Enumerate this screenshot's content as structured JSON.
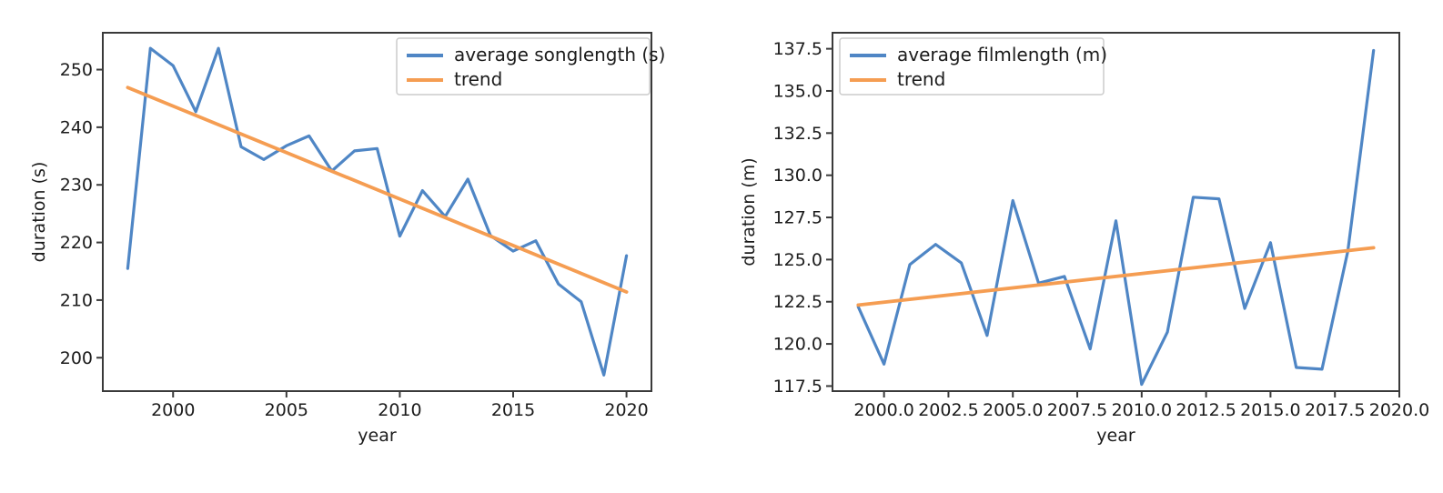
{
  "figure": {
    "background": "#ffffff"
  },
  "chart_data": [
    {
      "name": "average-songlength-chart",
      "type": "line",
      "title": "",
      "xlabel": "year",
      "ylabel": "duration (s)",
      "x": [
        1998,
        1999,
        2000,
        2001,
        2002,
        2003,
        2004,
        2005,
        2006,
        2007,
        2008,
        2009,
        2010,
        2011,
        2012,
        2013,
        2014,
        2015,
        2016,
        2017,
        2018,
        2019,
        2020
      ],
      "series": [
        {
          "name": "average songlength (s)",
          "color": "#4f86c5",
          "values": [
            215.5,
            253.7,
            250.7,
            242.7,
            253.7,
            236.6,
            234.4,
            236.8,
            238.5,
            232.4,
            235.9,
            236.3,
            221.1,
            229.0,
            224.5,
            231.0,
            221.2,
            218.5,
            220.3,
            212.8,
            209.7,
            197.0,
            217.7
          ]
        },
        {
          "name": "trend",
          "color": "#f59d52",
          "x": [
            1998,
            2020
          ],
          "values": [
            246.9,
            211.4
          ]
        }
      ],
      "legend": {
        "position": "top-right",
        "entries": [
          "average songlength (s)",
          "trend"
        ]
      },
      "xlim": [
        1996.9,
        2021.1
      ],
      "ylim": [
        194.2,
        256.4
      ],
      "xticks": [
        2000,
        2005,
        2010,
        2015,
        2020
      ],
      "xtick_labels": [
        "2000",
        "2005",
        "2010",
        "2015",
        "2020"
      ],
      "yticks": [
        200,
        210,
        220,
        230,
        240,
        250
      ],
      "ytick_labels": [
        "200",
        "210",
        "220",
        "230",
        "240",
        "250"
      ],
      "grid": false
    },
    {
      "name": "average-filmlength-chart",
      "type": "line",
      "title": "",
      "xlabel": "year",
      "ylabel": "duration (m)",
      "x": [
        1999,
        2000,
        2001,
        2002,
        2003,
        2004,
        2005,
        2006,
        2007,
        2008,
        2009,
        2010,
        2011,
        2012,
        2013,
        2014,
        2015,
        2016,
        2017,
        2018,
        2019
      ],
      "series": [
        {
          "name": "average filmlength (m)",
          "color": "#4f86c5",
          "values": [
            122.2,
            118.8,
            124.7,
            125.9,
            124.8,
            120.5,
            128.5,
            123.6,
            124.0,
            119.7,
            127.3,
            117.6,
            120.7,
            128.7,
            128.6,
            122.1,
            126.0,
            118.6,
            118.5,
            125.5,
            137.4
          ]
        },
        {
          "name": "trend",
          "color": "#f59d52",
          "x": [
            1999,
            2019
          ],
          "values": [
            122.3,
            125.7
          ]
        }
      ],
      "legend": {
        "position": "top-left",
        "entries": [
          "average filmlength (m)",
          "trend"
        ]
      },
      "xlim": [
        1998,
        2020
      ],
      "ylim": [
        117.2,
        138.45
      ],
      "xticks": [
        2000,
        2002.5,
        2005,
        2007.5,
        2010,
        2012.5,
        2015,
        2017.5,
        2020
      ],
      "xtick_labels": [
        "2000.0",
        "2002.5",
        "2005.0",
        "2007.5",
        "2010.0",
        "2012.5",
        "2015.0",
        "2017.5",
        "2020.0"
      ],
      "yticks": [
        117.5,
        120.0,
        122.5,
        125.0,
        127.5,
        130.0,
        132.5,
        135.0,
        137.5
      ],
      "ytick_labels": [
        "117.5",
        "120.0",
        "122.5",
        "125.0",
        "127.5",
        "130.0",
        "132.5",
        "135.0",
        "137.5"
      ],
      "grid": false
    }
  ]
}
